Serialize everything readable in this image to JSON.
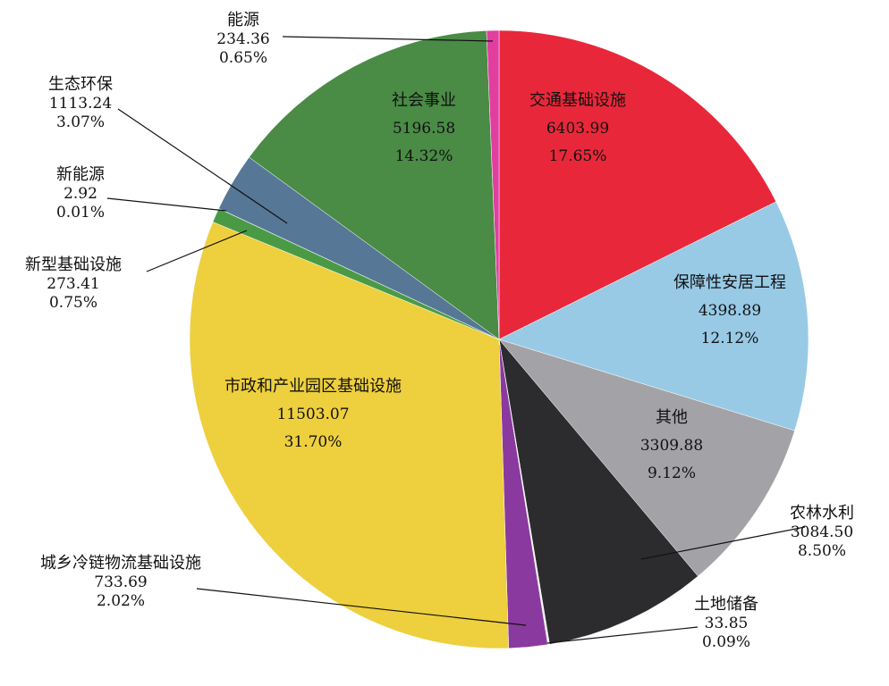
{
  "chart_data": {
    "type": "pie",
    "title": "",
    "start_angle_deg": 0,
    "direction": "clockwise",
    "slices": [
      {
        "name": "交通基础设施",
        "value": 6403.99,
        "percent": "17.65%",
        "color": "#e8283a",
        "label_inside": true
      },
      {
        "name": "保障性安居工程",
        "value": 4398.89,
        "percent": "12.12%",
        "color": "#98cae6",
        "label_inside": true
      },
      {
        "name": "其他",
        "value": 3309.88,
        "percent": "9.12%",
        "color": "#a3a3a7",
        "label_inside": true
      },
      {
        "name": "农林水利",
        "value": 3084.5,
        "percent": "8.50%",
        "color": "#2c2c2e",
        "label_inside": false
      },
      {
        "name": "土地储备",
        "value": 33.85,
        "percent": "0.09%",
        "color": "#f5f5f5",
        "label_inside": false
      },
      {
        "name": "城乡冷链物流基础设施",
        "value": 733.69,
        "percent": "2.02%",
        "color": "#8a3a9e",
        "label_inside": false
      },
      {
        "name": "市政和产业园区基础设施",
        "value": 11503.07,
        "percent": "31.70%",
        "color": "#eecf3e",
        "label_inside": true
      },
      {
        "name": "新型基础设施",
        "value": 273.41,
        "percent": "0.75%",
        "color": "#4a9a45",
        "label_inside": false
      },
      {
        "name": "新能源",
        "value": 2.92,
        "percent": "0.01%",
        "color": "#4a8a45",
        "label_inside": false
      },
      {
        "name": "生态环保",
        "value": 1113.24,
        "percent": "3.07%",
        "color": "#567896",
        "label_inside": false
      },
      {
        "name": "社会事业",
        "value": 5196.58,
        "percent": "14.32%",
        "color": "#4a8b45",
        "label_inside": true
      },
      {
        "name": "能源",
        "value": 234.36,
        "percent": "0.65%",
        "color": "#e23ea0",
        "label_inside": false
      }
    ]
  }
}
